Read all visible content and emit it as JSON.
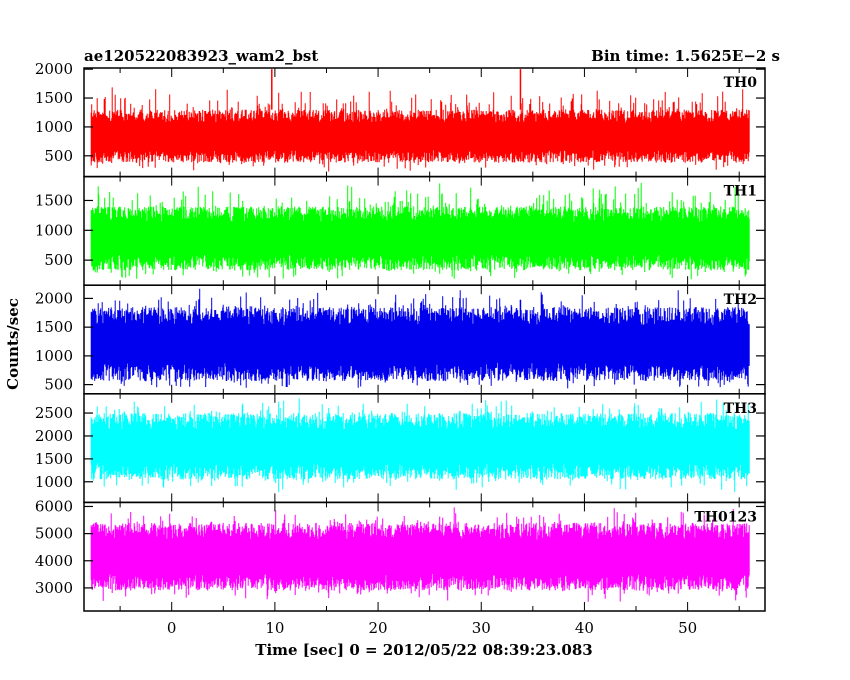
{
  "chart_data": {
    "type": "line",
    "title_left": "ae120522083923_wam2_bst",
    "title_right": "Bin time: 1.5625E−2 s",
    "xlabel": "Time [sec] 0 = 2012/05/22 08:39:23.083",
    "ylabel": "Counts/sec",
    "xlim": [
      -8.5,
      57.5
    ],
    "x_range_data": [
      -7.8,
      56.0
    ],
    "x_ticks": [
      "0",
      "10",
      "20",
      "30",
      "40",
      "50"
    ],
    "x_tick_values": [
      0,
      10,
      20,
      30,
      40,
      50
    ],
    "grid": false,
    "panels": [
      {
        "name": "TH0",
        "color": "#ff0000",
        "ylim": [
          140,
          2020
        ],
        "y_ticks": [
          "500",
          "1000",
          "1500",
          "2000"
        ],
        "y_tick_values": [
          500,
          1000,
          1500,
          2000
        ],
        "typical_range": [
          380,
          1300
        ],
        "extremes_range": [
          200,
          1700
        ],
        "spikes": [
          [
            9.7,
            2000
          ],
          [
            33.8,
            2000
          ]
        ],
        "seed": 11
      },
      {
        "name": "TH1",
        "color": "#00ff00",
        "ylim": [
          80,
          1900
        ],
        "y_ticks": [
          "500",
          "1000",
          "1500"
        ],
        "y_tick_values": [
          500,
          1000,
          1500
        ],
        "typical_range": [
          330,
          1400
        ],
        "extremes_range": [
          150,
          1800
        ],
        "spikes": [],
        "seed": 23
      },
      {
        "name": "TH2",
        "color": "#0000ee",
        "ylim": [
          340,
          2230
        ],
        "y_ticks": [
          "500",
          "1000",
          "1500",
          "2000"
        ],
        "y_tick_values": [
          500,
          1000,
          1500,
          2000
        ],
        "typical_range": [
          560,
          1850
        ],
        "extremes_range": [
          370,
          2200
        ],
        "spikes": [],
        "seed": 37
      },
      {
        "name": "TH3",
        "color": "#00ffff",
        "ylim": [
          550,
          2920
        ],
        "y_ticks": [
          "1000",
          "1500",
          "2000",
          "2500"
        ],
        "y_tick_values": [
          1000,
          1500,
          2000,
          2500
        ],
        "typical_range": [
          1050,
          2500
        ],
        "extremes_range": [
          750,
          2880
        ],
        "spikes": [],
        "seed": 41
      },
      {
        "name": "TH0123",
        "color": "#ff00ff",
        "ylim": [
          2150,
          6150
        ],
        "y_ticks": [
          "3000",
          "4000",
          "5000",
          "6000"
        ],
        "y_tick_values": [
          3000,
          4000,
          5000,
          6000
        ],
        "typical_range": [
          2900,
          5400
        ],
        "extremes_range": [
          2450,
          6000
        ],
        "spikes": [],
        "seed": 53
      }
    ]
  }
}
